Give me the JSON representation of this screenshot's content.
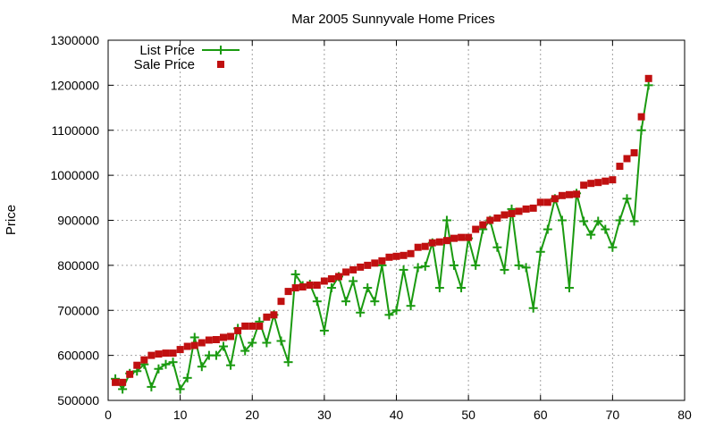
{
  "chart_data": {
    "type": "line",
    "title": "Mar 2005 Sunnyvale Home Prices",
    "xlabel": "",
    "ylabel": "Price",
    "xlim": [
      0,
      80
    ],
    "ylim": [
      500000,
      1300000
    ],
    "x_ticks": [
      0,
      10,
      20,
      30,
      40,
      50,
      60,
      70,
      80
    ],
    "y_ticks": [
      500000,
      600000,
      700000,
      800000,
      900000,
      1000000,
      1100000,
      1200000,
      1300000
    ],
    "grid": true,
    "legend": "top-left",
    "colors": {
      "list": "#1a9a10",
      "sale": "#c01010"
    },
    "series": [
      {
        "name": "List Price",
        "style": "linespoints",
        "marker": "plus",
        "x": [
          1,
          2,
          3,
          4,
          5,
          6,
          7,
          8,
          9,
          10,
          11,
          12,
          13,
          14,
          15,
          16,
          17,
          18,
          19,
          20,
          21,
          22,
          23,
          24,
          25,
          26,
          27,
          28,
          29,
          30,
          31,
          32,
          33,
          34,
          35,
          36,
          37,
          38,
          39,
          40,
          41,
          42,
          43,
          44,
          45,
          46,
          47,
          48,
          49,
          50,
          51,
          52,
          53,
          54,
          55,
          56,
          57,
          58,
          59,
          60,
          61,
          62,
          63,
          64,
          65,
          66,
          67,
          68,
          69,
          70,
          71,
          72,
          73,
          74,
          75
        ],
        "values": [
          548000,
          525000,
          560000,
          565000,
          580000,
          530000,
          570000,
          580000,
          585000,
          525000,
          550000,
          640000,
          575000,
          600000,
          600000,
          620000,
          578000,
          660000,
          610000,
          628000,
          675000,
          628000,
          690000,
          632000,
          585000,
          780000,
          755000,
          758000,
          720000,
          655000,
          750000,
          775000,
          720000,
          765000,
          695000,
          750000,
          720000,
          800000,
          690000,
          700000,
          790000,
          710000,
          795000,
          798000,
          850000,
          750000,
          900000,
          800000,
          750000,
          860000,
          800000,
          880000,
          900000,
          840000,
          790000,
          925000,
          800000,
          795000,
          705000,
          830000,
          880000,
          948000,
          900000,
          750000,
          960000,
          898000,
          868000,
          898000,
          880000,
          840000,
          900000,
          948000,
          898000,
          1100000,
          1200000
        ]
      },
      {
        "name": "Sale Price",
        "style": "points",
        "marker": "square",
        "x": [
          1,
          2,
          3,
          4,
          5,
          6,
          7,
          8,
          9,
          10,
          11,
          12,
          13,
          14,
          15,
          16,
          17,
          18,
          19,
          20,
          21,
          22,
          23,
          24,
          25,
          26,
          27,
          28,
          29,
          30,
          31,
          32,
          33,
          34,
          35,
          36,
          37,
          38,
          39,
          40,
          41,
          42,
          43,
          44,
          45,
          46,
          47,
          48,
          49,
          50,
          51,
          52,
          53,
          54,
          55,
          56,
          57,
          58,
          59,
          60,
          61,
          62,
          63,
          64,
          65,
          66,
          67,
          68,
          69,
          70,
          71,
          72,
          73,
          74,
          75
        ],
        "values": [
          540000,
          540000,
          558000,
          578000,
          590000,
          600000,
          603000,
          605000,
          605000,
          613000,
          620000,
          622000,
          628000,
          634000,
          635000,
          640000,
          642000,
          655000,
          665000,
          665000,
          665000,
          685000,
          690000,
          720000,
          742000,
          750000,
          752000,
          756000,
          756000,
          765000,
          770000,
          775000,
          785000,
          790000,
          796000,
          800000,
          805000,
          810000,
          818000,
          820000,
          822000,
          826000,
          840000,
          842000,
          850000,
          852000,
          855000,
          860000,
          862000,
          862000,
          880000,
          890000,
          900000,
          905000,
          912000,
          915000,
          920000,
          925000,
          927000,
          940000,
          940000,
          948000,
          955000,
          957000,
          958000,
          978000,
          982000,
          984000,
          987000,
          990000,
          1020000,
          1037000,
          1050000,
          1130000,
          1215000
        ]
      }
    ]
  }
}
